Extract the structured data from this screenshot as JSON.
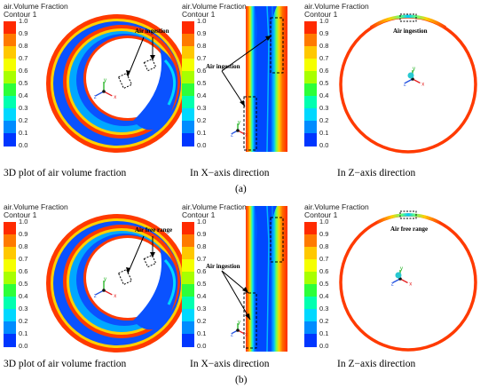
{
  "contour_title_line1": "air.Volume Fraction",
  "contour_title_line2": "Contour 1",
  "colorbar_ticks": [
    "1.0",
    "0.9",
    "0.8",
    "0.7",
    "0.6",
    "0.5",
    "0.4",
    "0.3",
    "0.2",
    "0.1",
    "0.0"
  ],
  "colorbar_colors": [
    "#ff2a00",
    "#ff7a00",
    "#ffc800",
    "#f5ff00",
    "#a8ff00",
    "#2dff3a",
    "#00ffb0",
    "#00d8ff",
    "#008cff",
    "#0036ff"
  ],
  "panel_a": {
    "label": "(a)",
    "captions": [
      "3D plot of air volume fraction",
      "In X−axis direction",
      "In Z−axis direction"
    ],
    "annotations": [
      "Air ingestion",
      "Air ingestion",
      "Air ingestion"
    ]
  },
  "panel_b": {
    "label": "(b)",
    "captions": [
      "3D plot of air volume fraction",
      "In X−axis direction",
      "In Z−axis direction"
    ],
    "annotations": [
      "Air free range",
      "Air ingestion",
      "Air free range"
    ]
  },
  "axis_labels": {
    "x": "x",
    "y": "y",
    "z": "z"
  }
}
